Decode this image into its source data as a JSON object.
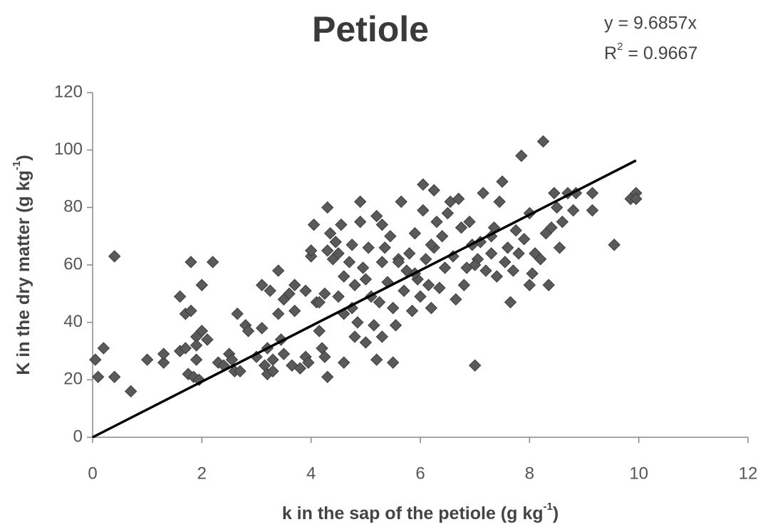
{
  "chart_data": {
    "type": "scatter",
    "title": "Petiole",
    "equation": "y = 9.6857x",
    "r2_base": "R",
    "r2_sup": "2",
    "r2_rest": " = 0.9667",
    "xlabel": "k in the sap of the petiole (g kg",
    "xlabel_sup": "-1",
    "xlabel_end": ")",
    "ylabel": "K in the dry matter (g kg",
    "ylabel_sup": "-1",
    "ylabel_end": ")",
    "xlim": [
      0,
      12
    ],
    "ylim": [
      0,
      120
    ],
    "xticks": [
      0,
      2,
      4,
      6,
      8,
      10,
      12
    ],
    "yticks": [
      0,
      20,
      40,
      60,
      80,
      100,
      120
    ],
    "grid": false,
    "color": "#5a5a5a",
    "trendline": {
      "slope": 9.6857,
      "x_range": [
        0,
        9.95
      ],
      "color": "#000000"
    },
    "x": [
      0.05,
      0.1,
      0.2,
      0.4,
      0.4,
      0.7,
      1.0,
      1.3,
      1.3,
      1.6,
      1.6,
      1.7,
      1.7,
      1.75,
      1.8,
      1.8,
      1.85,
      1.9,
      1.9,
      1.9,
      1.95,
      2.0,
      2.0,
      2.1,
      2.2,
      2.3,
      2.4,
      2.5,
      2.55,
      2.6,
      2.65,
      2.7,
      2.8,
      2.85,
      3.0,
      3.1,
      3.1,
      3.15,
      3.2,
      3.2,
      3.25,
      3.3,
      3.3,
      3.4,
      3.4,
      3.45,
      3.5,
      3.5,
      3.6,
      3.65,
      3.7,
      3.7,
      3.8,
      3.9,
      3.9,
      3.95,
      4.0,
      4.0,
      4.05,
      4.1,
      4.15,
      4.2,
      4.25,
      4.25,
      4.3,
      4.3,
      4.3,
      4.35,
      4.4,
      4.45,
      4.5,
      4.5,
      4.55,
      4.6,
      4.6,
      4.7,
      4.75,
      4.8,
      4.8,
      4.85,
      4.9,
      4.9,
      4.95,
      5.0,
      5.0,
      5.05,
      5.1,
      5.15,
      5.2,
      5.2,
      5.25,
      5.3,
      5.3,
      5.35,
      5.4,
      5.45,
      5.5,
      5.5,
      5.55,
      5.6,
      5.65,
      5.7,
      5.75,
      5.8,
      5.85,
      5.9,
      5.95,
      6.0,
      6.05,
      6.05,
      6.1,
      6.15,
      6.2,
      6.25,
      6.25,
      6.3,
      6.35,
      6.4,
      6.45,
      6.5,
      6.55,
      6.6,
      6.65,
      6.7,
      6.75,
      6.8,
      6.85,
      6.9,
      6.95,
      7.0,
      7.05,
      7.1,
      7.15,
      7.2,
      7.3,
      7.35,
      7.4,
      7.45,
      7.5,
      7.55,
      7.6,
      7.65,
      7.7,
      7.75,
      7.8,
      7.85,
      7.9,
      8.0,
      8.0,
      8.05,
      8.1,
      8.2,
      8.25,
      8.3,
      8.35,
      8.4,
      8.45,
      8.5,
      8.55,
      8.6,
      8.7,
      8.8,
      8.85,
      9.15,
      9.15,
      9.55,
      9.85,
      9.95,
      9.95,
      4.15,
      4.75,
      5.6,
      5.9,
      6.2,
      7.0,
      7.3,
      5.3,
      4.6
    ],
    "y": [
      27,
      21,
      31,
      63,
      21,
      16,
      27,
      26,
      29,
      49,
      30,
      31,
      43,
      22,
      44,
      61,
      21,
      35,
      27,
      32,
      20,
      37,
      53,
      34,
      61,
      26,
      25,
      29,
      27,
      23,
      43,
      23,
      39,
      37,
      28,
      38,
      53,
      25,
      22,
      31,
      51,
      23,
      27,
      58,
      43,
      34,
      29,
      48,
      50,
      25,
      53,
      44,
      24,
      51,
      28,
      26,
      63,
      65,
      74,
      47,
      37,
      31,
      28,
      50,
      80,
      21,
      65,
      71,
      62,
      68,
      49,
      64,
      74,
      26,
      56,
      61,
      67,
      35,
      53,
      40,
      82,
      75,
      59,
      33,
      55,
      66,
      49,
      39,
      77,
      27,
      47,
      35,
      74,
      66,
      54,
      70,
      26,
      45,
      39,
      62,
      82,
      51,
      58,
      64,
      44,
      71,
      55,
      49,
      79,
      88,
      62,
      53,
      45,
      66,
      86,
      75,
      52,
      70,
      59,
      78,
      82,
      63,
      48,
      83,
      73,
      53,
      59,
      75,
      67,
      25,
      62,
      68,
      85,
      58,
      64,
      73,
      56,
      82,
      89,
      61,
      66,
      47,
      58,
      72,
      64,
      98,
      69,
      78,
      53,
      57,
      64,
      62,
      103,
      71,
      53,
      73,
      85,
      80,
      66,
      75,
      85,
      79,
      85,
      85,
      79,
      67,
      83,
      85,
      83,
      47,
      45,
      61,
      57,
      67,
      60,
      70,
      61,
      43
    ]
  }
}
